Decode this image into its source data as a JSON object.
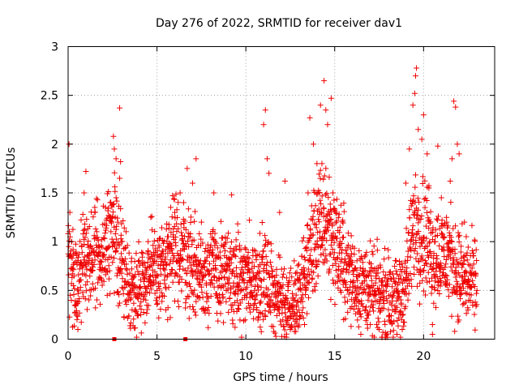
{
  "chart_data": {
    "type": "scatter",
    "title": "Day 276 of 2022, SRMTID for receiver dav1",
    "xlabel": "GPS time / hours",
    "ylabel": "SRMTID / TECUs",
    "xlim": [
      0,
      24
    ],
    "ylim": [
      0,
      3
    ],
    "xticks": [
      0,
      5,
      10,
      15,
      20
    ],
    "yticks": [
      0,
      0.5,
      1,
      1.5,
      2,
      2.5,
      3
    ],
    "xtick_labels": [
      "0",
      "5",
      "10",
      "15",
      "20"
    ],
    "ytick_labels": [
      "0",
      "0.5",
      "1",
      "1.5",
      "2",
      "2.5",
      "3"
    ],
    "grid": true,
    "marker": "plus",
    "color": "#ee0000",
    "profile": [
      {
        "x": 0.0,
        "y": 0.8
      },
      {
        "x": 0.5,
        "y": 0.6
      },
      {
        "x": 1.0,
        "y": 0.75
      },
      {
        "x": 1.5,
        "y": 0.85
      },
      {
        "x": 2.0,
        "y": 0.95
      },
      {
        "x": 2.5,
        "y": 1.1
      },
      {
        "x": 3.0,
        "y": 0.8
      },
      {
        "x": 3.5,
        "y": 0.5
      },
      {
        "x": 4.0,
        "y": 0.55
      },
      {
        "x": 4.5,
        "y": 0.65
      },
      {
        "x": 5.0,
        "y": 0.7
      },
      {
        "x": 5.5,
        "y": 0.75
      },
      {
        "x": 6.0,
        "y": 0.9
      },
      {
        "x": 6.5,
        "y": 0.9
      },
      {
        "x": 7.0,
        "y": 0.75
      },
      {
        "x": 7.5,
        "y": 0.65
      },
      {
        "x": 8.0,
        "y": 0.75
      },
      {
        "x": 8.5,
        "y": 0.65
      },
      {
        "x": 9.0,
        "y": 0.65
      },
      {
        "x": 9.5,
        "y": 0.6
      },
      {
        "x": 10.0,
        "y": 0.6
      },
      {
        "x": 10.5,
        "y": 0.6
      },
      {
        "x": 11.0,
        "y": 0.65
      },
      {
        "x": 11.5,
        "y": 0.5
      },
      {
        "x": 12.0,
        "y": 0.4
      },
      {
        "x": 12.5,
        "y": 0.38
      },
      {
        "x": 13.0,
        "y": 0.4
      },
      {
        "x": 13.5,
        "y": 0.8
      },
      {
        "x": 14.0,
        "y": 1.1
      },
      {
        "x": 14.5,
        "y": 1.2
      },
      {
        "x": 15.0,
        "y": 1.0
      },
      {
        "x": 15.5,
        "y": 0.8
      },
      {
        "x": 16.0,
        "y": 0.6
      },
      {
        "x": 16.5,
        "y": 0.55
      },
      {
        "x": 17.0,
        "y": 0.5
      },
      {
        "x": 17.5,
        "y": 0.45
      },
      {
        "x": 18.0,
        "y": 0.45
      },
      {
        "x": 18.5,
        "y": 0.4
      },
      {
        "x": 19.0,
        "y": 0.6
      },
      {
        "x": 19.5,
        "y": 1.2
      },
      {
        "x": 20.0,
        "y": 1.1
      },
      {
        "x": 20.5,
        "y": 0.9
      },
      {
        "x": 21.0,
        "y": 0.85
      },
      {
        "x": 21.5,
        "y": 0.85
      },
      {
        "x": 22.0,
        "y": 0.65
      },
      {
        "x": 22.5,
        "y": 0.6
      },
      {
        "x": 23.0,
        "y": 0.55
      }
    ],
    "points": [
      {
        "x": 0.05,
        "y": 2.0
      },
      {
        "x": 0.1,
        "y": 1.3
      },
      {
        "x": 0.2,
        "y": 1.0
      },
      {
        "x": 0.3,
        "y": 0.55
      },
      {
        "x": 0.5,
        "y": 0.2
      },
      {
        "x": 0.55,
        "y": 0.1
      },
      {
        "x": 0.9,
        "y": 1.5
      },
      {
        "x": 1.0,
        "y": 1.72
      },
      {
        "x": 1.5,
        "y": 1.3
      },
      {
        "x": 2.1,
        "y": 1.35
      },
      {
        "x": 2.2,
        "y": 0.45
      },
      {
        "x": 2.55,
        "y": 2.08
      },
      {
        "x": 2.6,
        "y": 1.95
      },
      {
        "x": 2.7,
        "y": 1.85
      },
      {
        "x": 2.9,
        "y": 1.65
      },
      {
        "x": 2.95,
        "y": 1.82
      },
      {
        "x": 2.8,
        "y": 1.2
      },
      {
        "x": 2.7,
        "y": 1.45
      },
      {
        "x": 2.9,
        "y": 2.37
      },
      {
        "x": 3.0,
        "y": 1.0
      },
      {
        "x": 3.6,
        "y": 0.3
      },
      {
        "x": 4.5,
        "y": 1.0
      },
      {
        "x": 5.0,
        "y": 0.5
      },
      {
        "x": 5.5,
        "y": 0.3
      },
      {
        "x": 5.6,
        "y": 0.2
      },
      {
        "x": 6.0,
        "y": 1.3
      },
      {
        "x": 6.3,
        "y": 1.5
      },
      {
        "x": 6.5,
        "y": 1.4
      },
      {
        "x": 6.7,
        "y": 1.75
      },
      {
        "x": 7.0,
        "y": 1.6
      },
      {
        "x": 7.2,
        "y": 1.85
      },
      {
        "x": 7.5,
        "y": 1.2
      },
      {
        "x": 8.2,
        "y": 1.5
      },
      {
        "x": 9.2,
        "y": 1.48
      },
      {
        "x": 10.2,
        "y": 1.22
      },
      {
        "x": 11.0,
        "y": 2.2
      },
      {
        "x": 11.1,
        "y": 2.35
      },
      {
        "x": 11.2,
        "y": 1.85
      },
      {
        "x": 11.3,
        "y": 1.7
      },
      {
        "x": 11.5,
        "y": 0.7
      },
      {
        "x": 11.9,
        "y": 1.3
      },
      {
        "x": 12.2,
        "y": 1.62
      },
      {
        "x": 12.5,
        "y": 0.1
      },
      {
        "x": 13.3,
        "y": 0.15
      },
      {
        "x": 13.5,
        "y": 1.5
      },
      {
        "x": 13.6,
        "y": 2.27
      },
      {
        "x": 13.8,
        "y": 2.0
      },
      {
        "x": 14.0,
        "y": 1.8
      },
      {
        "x": 14.2,
        "y": 2.4
      },
      {
        "x": 14.4,
        "y": 2.65
      },
      {
        "x": 14.5,
        "y": 2.35
      },
      {
        "x": 14.6,
        "y": 2.2
      },
      {
        "x": 14.8,
        "y": 2.47
      },
      {
        "x": 14.5,
        "y": 1.75
      },
      {
        "x": 14.9,
        "y": 1.5
      },
      {
        "x": 15.3,
        "y": 1.0
      },
      {
        "x": 15.5,
        "y": 0.2
      },
      {
        "x": 16.0,
        "y": 0.95
      },
      {
        "x": 16.5,
        "y": 0.85
      },
      {
        "x": 17.0,
        "y": 0.15
      },
      {
        "x": 17.5,
        "y": 0.1
      },
      {
        "x": 18.5,
        "y": 0.05
      },
      {
        "x": 18.7,
        "y": 0.02
      },
      {
        "x": 18.8,
        "y": 0.1
      },
      {
        "x": 19.0,
        "y": 1.6
      },
      {
        "x": 19.2,
        "y": 1.95
      },
      {
        "x": 19.4,
        "y": 2.4
      },
      {
        "x": 19.5,
        "y": 2.52
      },
      {
        "x": 19.6,
        "y": 2.78
      },
      {
        "x": 19.55,
        "y": 2.7
      },
      {
        "x": 19.7,
        "y": 2.15
      },
      {
        "x": 19.9,
        "y": 2.05
      },
      {
        "x": 20.0,
        "y": 2.3
      },
      {
        "x": 20.2,
        "y": 1.9
      },
      {
        "x": 20.3,
        "y": 1.55
      },
      {
        "x": 20.5,
        "y": 0.15
      },
      {
        "x": 20.5,
        "y": 0.05
      },
      {
        "x": 20.8,
        "y": 1.98
      },
      {
        "x": 21.0,
        "y": 1.45
      },
      {
        "x": 21.3,
        "y": 1.2
      },
      {
        "x": 21.5,
        "y": 1.62
      },
      {
        "x": 21.6,
        "y": 1.85
      },
      {
        "x": 21.7,
        "y": 2.44
      },
      {
        "x": 21.8,
        "y": 2.38
      },
      {
        "x": 21.9,
        "y": 2.0
      },
      {
        "x": 22.0,
        "y": 1.9
      },
      {
        "x": 22.3,
        "y": 1.2
      },
      {
        "x": 22.5,
        "y": 0.3
      },
      {
        "x": 23.0,
        "y": 0.5
      }
    ],
    "axis_markers": [
      {
        "x": 2.6,
        "y": 0
      },
      {
        "x": 6.6,
        "y": 0
      }
    ]
  }
}
